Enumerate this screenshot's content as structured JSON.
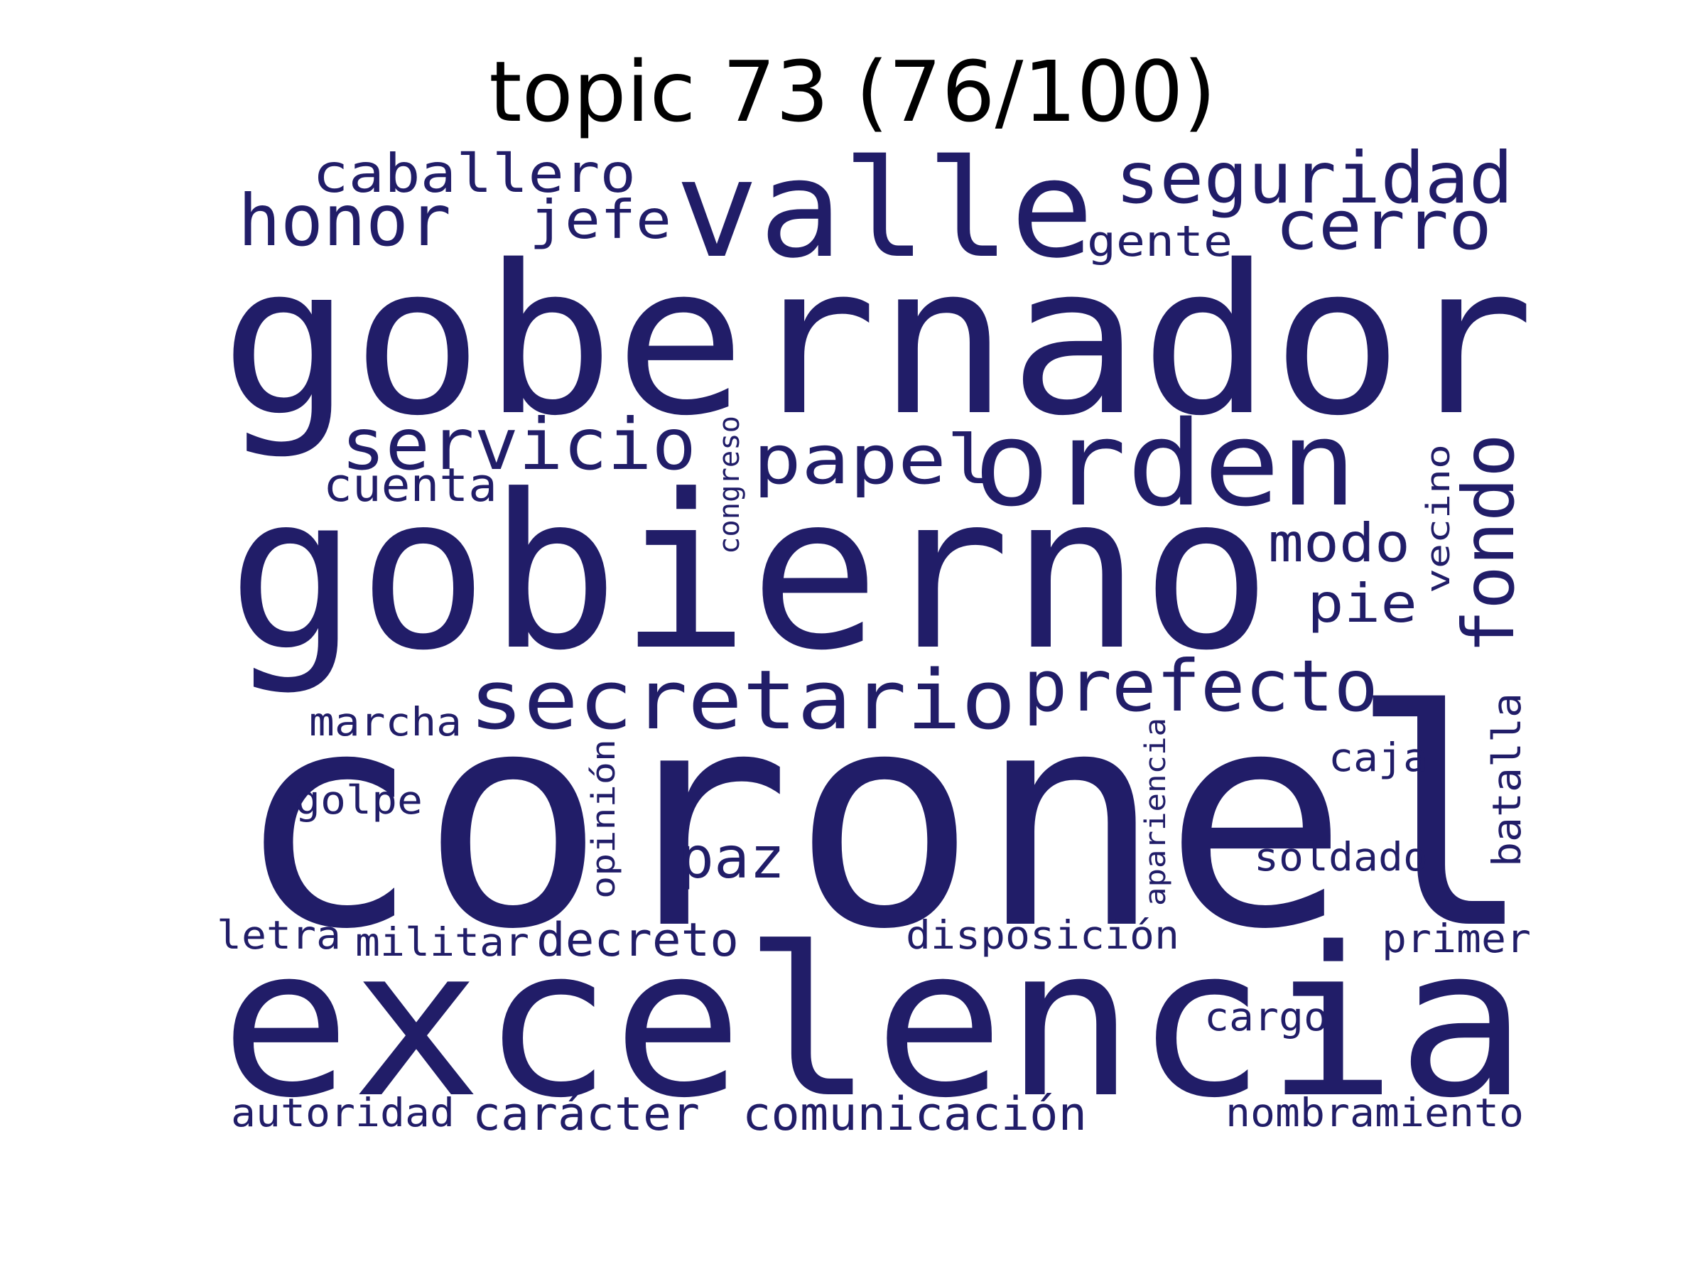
{
  "title": "topic 73 (76/100)",
  "word_color": "#211d68",
  "words": [
    "coronel",
    "gobernador",
    "gobierno",
    "excelencia",
    "valle",
    "orden",
    "secretario",
    "prefecto",
    "seguridad",
    "honor",
    "caballero",
    "servicio",
    "papel",
    "fondo",
    "cerro",
    "jefe",
    "gente",
    "cuenta",
    "modo",
    "pie",
    "paz",
    "marcha",
    "golpe",
    "decreto",
    "disposición",
    "soldado",
    "caja",
    "batalla",
    "primer",
    "letra",
    "militar",
    "cargo",
    "autoridad",
    "carácter",
    "comunicación",
    "nombramiento",
    "congreso",
    "vecino",
    "opinión",
    "apariencia"
  ]
}
